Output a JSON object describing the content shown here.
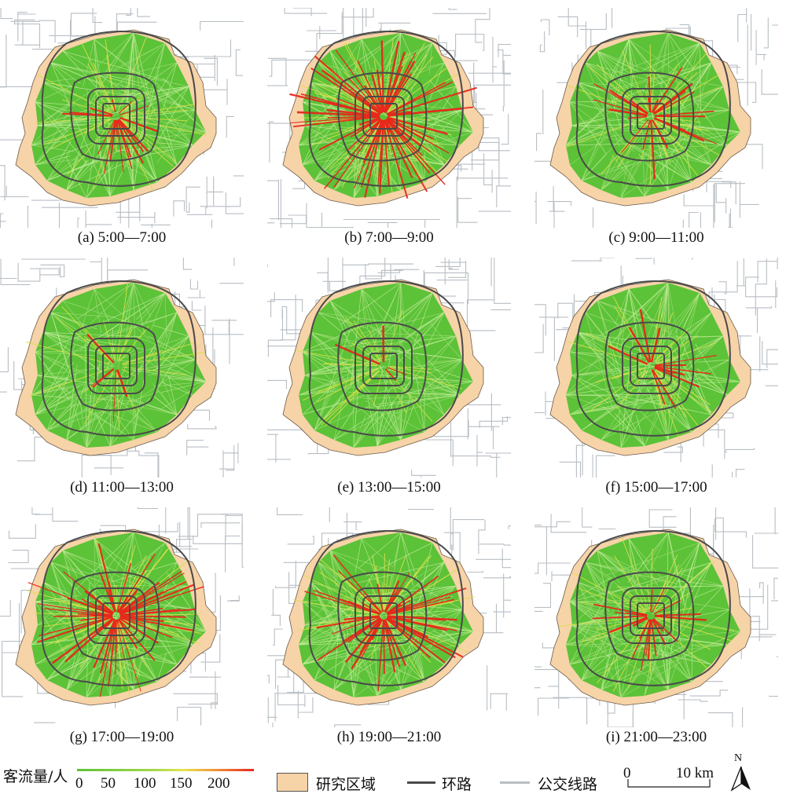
{
  "panels": [
    {
      "label": "(a) 5:00—7:00",
      "intensity": 0.25
    },
    {
      "label": "(b) 7:00—9:00",
      "intensity": 0.95
    },
    {
      "label": "(c) 9:00—11:00",
      "intensity": 0.35
    },
    {
      "label": "(d) 11:00—13:00",
      "intensity": 0.08
    },
    {
      "label": "(e) 13:00—15:00",
      "intensity": 0.05
    },
    {
      "label": "(f) 15:00—17:00",
      "intensity": 0.18
    },
    {
      "label": "(g) 17:00—19:00",
      "intensity": 0.8
    },
    {
      "label": "(h) 19:00—21:00",
      "intensity": 0.7
    },
    {
      "label": "(i) 21:00—23:00",
      "intensity": 0.3
    }
  ],
  "legend": {
    "flow_title": "客流量/人",
    "flow_ticks": [
      "0",
      "50",
      "100",
      "150",
      "200"
    ],
    "study_area": "研究区域",
    "ring_road": "环路",
    "bus_route": "公交线路",
    "scale_start": "0",
    "scale_end": "10 km",
    "north": "N"
  },
  "colors": {
    "study_area": "#f7d3a8",
    "ring_road": "#4a4a4a",
    "bus_route": "#b8bec4",
    "flow_low": "#5cc238",
    "flow_mid": "#d8e04a",
    "flow_high": "#e8281c"
  }
}
